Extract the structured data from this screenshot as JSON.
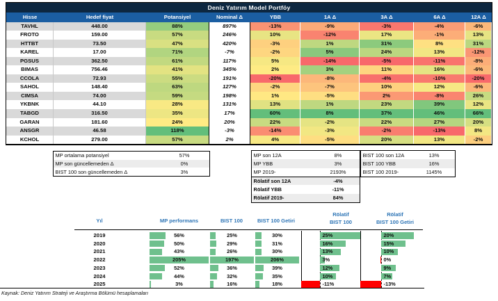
{
  "title": "Deniz Yatırım Model Portföy",
  "colors": {
    "title_bar": "#0d2740",
    "header_band": "#1b5ea2",
    "heat_low": "#F8696B",
    "heat_mid": "#FFEB84",
    "heat_high": "#63BE7B",
    "databar_green": "#6fc08d",
    "databar_red": "#ff0000",
    "row_stripe": "#d9d9d9",
    "perf_header_blue": "#2e75b6"
  },
  "portfolio_table": {
    "columns": [
      "Hisse",
      "Hedef fiyat",
      "Potansiyel",
      "Nominal Δ",
      "YBB",
      "1A Δ",
      "3A Δ",
      "6A Δ",
      "12A Δ"
    ],
    "rows": [
      [
        "TAVHL",
        "448.00",
        88,
        897,
        -13,
        -9,
        -3,
        -4,
        -6
      ],
      [
        "FROTO",
        "159.00",
        57,
        246,
        10,
        -12,
        17,
        -1,
        13
      ],
      [
        "HTTBT",
        "73.50",
        47,
        420,
        -3,
        1,
        31,
        8,
        31
      ],
      [
        "KAREL",
        "17.00",
        71,
        -7,
        -2,
        5,
        24,
        13,
        -12
      ],
      [
        "PGSUS",
        "362.50",
        61,
        117,
        5,
        -14,
        -5,
        -11,
        -8
      ],
      [
        "BIMAS",
        "756.46",
        41,
        345,
        2,
        3,
        11,
        16,
        -6
      ],
      [
        "CCOLA",
        "72.93",
        55,
        191,
        -20,
        -8,
        -4,
        -10,
        -20
      ],
      [
        "SAHOL",
        "148.40",
        63,
        127,
        -2,
        -7,
        10,
        12,
        -6
      ],
      [
        "CIMSA",
        "74.00",
        59,
        198,
        1,
        -5,
        2,
        -8,
        26
      ],
      [
        "YKBNK",
        "44.10",
        28,
        131,
        13,
        1,
        23,
        39,
        12
      ],
      [
        "TABGD",
        "316.50",
        35,
        17,
        60,
        8,
        37,
        46,
        66
      ],
      [
        "GARAN",
        "181.60",
        24,
        20,
        22,
        -2,
        22,
        27,
        20
      ],
      [
        "ANSGR",
        "46.58",
        118,
        -3,
        -14,
        -3,
        -2,
        -13,
        8
      ],
      [
        "KCHOL",
        "279.00",
        57,
        2,
        4,
        -5,
        20,
        13,
        -2
      ]
    ]
  },
  "summary_potansiyel": {
    "rows": [
      {
        "label": "MP ortalama potansiyel",
        "value": "57%"
      },
      {
        "label": "MP son güncellemeden Δ",
        "value": "0%"
      },
      {
        "label": "BIST 100 son güncellemeden Δ",
        "value": "3%"
      }
    ]
  },
  "summary_mp": {
    "rows": [
      {
        "label": "MP son 12A",
        "value": "8%",
        "bold": false
      },
      {
        "label": "MP YBB",
        "value": "3%",
        "bold": false
      },
      {
        "label": "MP 2019-",
        "value": "2193%",
        "bold": false
      },
      {
        "label": "Rölatif son 12A",
        "value": "-4%",
        "bold": true
      },
      {
        "label": "Rölatif YBB",
        "value": "-11%",
        "bold": true
      },
      {
        "label": "Rölatif 2019-",
        "value": "84%",
        "bold": true
      }
    ]
  },
  "summary_bist": {
    "rows": [
      {
        "label": "BIST 100 son 12A",
        "value": "13%"
      },
      {
        "label": "BIST 100 YBB",
        "value": "16%"
      },
      {
        "label": "BIST 100 2019-",
        "value": "1145%"
      }
    ]
  },
  "performance_table": {
    "col_yil": "Yıl",
    "col_mp": "MP performans",
    "col_bist": "BIST 100",
    "col_getiri": "BIST 100 Getiri",
    "col_rel_bist_l1": "Rölatif",
    "col_rel_bist_l2": "BIST 100",
    "col_rel_getiri_l1": "Rölatif",
    "col_rel_getiri_l2": "BIST 100 Getiri",
    "rows": [
      {
        "yil": "2019",
        "mp": 56,
        "bist": 25,
        "getiri": 30,
        "rel_bist": 25,
        "rel_getiri": 20
      },
      {
        "yil": "2020",
        "mp": 50,
        "bist": 29,
        "getiri": 31,
        "rel_bist": 16,
        "rel_getiri": 15
      },
      {
        "yil": "2021",
        "mp": 43,
        "bist": 26,
        "getiri": 30,
        "rel_bist": 13,
        "rel_getiri": 10
      },
      {
        "yil": "2022",
        "mp": 205,
        "bist": 197,
        "getiri": 206,
        "rel_bist": 3,
        "rel_getiri": {
          "label": "0%",
          "value": -0.5
        }
      },
      {
        "yil": "2023",
        "mp": 52,
        "bist": 36,
        "getiri": 39,
        "rel_bist": 12,
        "rel_getiri": 9
      },
      {
        "yil": "2024",
        "mp": 44,
        "bist": 32,
        "getiri": 35,
        "rel_bist": 10,
        "rel_getiri": 7
      },
      {
        "yil": "2025",
        "mp": 3,
        "bist": 16,
        "getiri": 18,
        "rel_bist": -11,
        "rel_getiri": -13
      }
    ]
  },
  "footer": "Kaynak: Deniz Yatırım Strateji ve Araştırma Bölümü hesaplamaları",
  "chart_data": [
    {
      "type": "bar",
      "title": "Model portföy yıllık performans",
      "categories": [
        "2019",
        "2020",
        "2021",
        "2022",
        "2023",
        "2024",
        "2025"
      ],
      "series": [
        {
          "name": "MP performans",
          "values": [
            56,
            50,
            43,
            205,
            52,
            44,
            3
          ]
        },
        {
          "name": "BIST 100",
          "values": [
            25,
            29,
            26,
            197,
            36,
            32,
            16
          ]
        },
        {
          "name": "BIST 100 Getiri",
          "values": [
            30,
            31,
            30,
            206,
            39,
            35,
            18
          ]
        },
        {
          "name": "Rölatif BIST 100",
          "values": [
            25,
            16,
            13,
            3,
            12,
            10,
            -11
          ]
        },
        {
          "name": "Rölatif BIST 100 Getiri",
          "values": [
            20,
            15,
            10,
            0,
            9,
            7,
            -13
          ]
        }
      ],
      "ylabel": "%",
      "legend_position": "column headers",
      "grid": false
    },
    {
      "type": "heatmap",
      "title": "Deniz Yatırım Model Portföy getiriler",
      "categories": [
        "TAVHL",
        "FROTO",
        "HTTBT",
        "KAREL",
        "PGSUS",
        "BIMAS",
        "CCOLA",
        "SAHOL",
        "CIMSA",
        "YKBNK",
        "TABGD",
        "GARAN",
        "ANSGR",
        "KCHOL"
      ],
      "series": [
        {
          "name": "Potansiyel",
          "values": [
            88,
            57,
            47,
            71,
            61,
            41,
            55,
            63,
            59,
            28,
            35,
            24,
            118,
            57
          ]
        },
        {
          "name": "Nominal Δ",
          "values": [
            897,
            246,
            420,
            -7,
            117,
            345,
            191,
            127,
            198,
            131,
            17,
            20,
            -3,
            2
          ]
        },
        {
          "name": "YBB",
          "values": [
            -13,
            10,
            -3,
            -2,
            5,
            2,
            -20,
            -2,
            1,
            13,
            60,
            22,
            -14,
            4
          ]
        },
        {
          "name": "1A Δ",
          "values": [
            -9,
            -12,
            1,
            5,
            -14,
            3,
            -8,
            -7,
            -5,
            1,
            8,
            -2,
            -3,
            -5
          ]
        },
        {
          "name": "3A Δ",
          "values": [
            -3,
            17,
            31,
            24,
            -5,
            11,
            -4,
            10,
            2,
            23,
            37,
            22,
            -2,
            20
          ]
        },
        {
          "name": "6A Δ",
          "values": [
            -4,
            -1,
            8,
            13,
            -11,
            16,
            -10,
            12,
            -8,
            39,
            46,
            27,
            -13,
            13
          ]
        },
        {
          "name": "12A Δ",
          "values": [
            -6,
            13,
            31,
            -12,
            -8,
            -6,
            -20,
            -6,
            26,
            12,
            66,
            20,
            8,
            -2
          ]
        }
      ],
      "ylabel": "%",
      "grid": false
    }
  ]
}
